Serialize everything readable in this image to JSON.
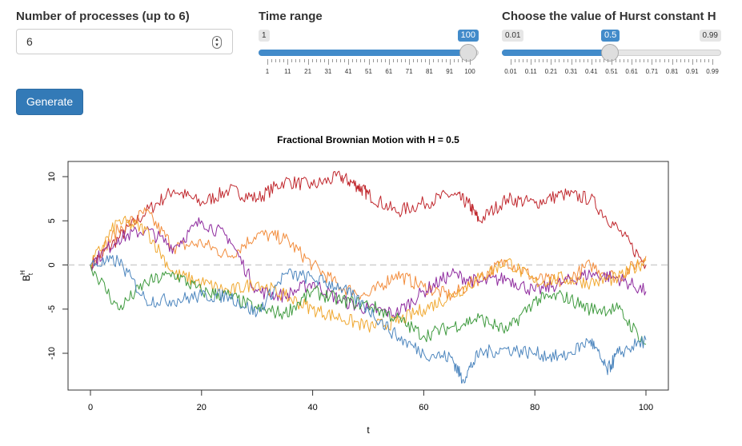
{
  "controls": {
    "processes": {
      "label": "Number of processes (up to 6)",
      "value": "6"
    },
    "time_range": {
      "label": "Time range",
      "min_label": "1",
      "value_label": "100",
      "min": 1,
      "max": 100,
      "value": 100,
      "ticks": [
        "1",
        "11",
        "21",
        "31",
        "41",
        "51",
        "61",
        "71",
        "81",
        "91",
        "100"
      ]
    },
    "hurst": {
      "label": "Choose the value of Hurst constant H",
      "min_label": "0.01",
      "value_label": "0.5",
      "max_label": "0.99",
      "min": 0.01,
      "max": 0.99,
      "value": 0.5,
      "ticks": [
        "0.01",
        "0.11",
        "0.21",
        "0.31",
        "0.41",
        "0.51",
        "0.61",
        "0.71",
        "0.81",
        "0.91",
        "0.99"
      ]
    },
    "generate_label": "Generate"
  },
  "chart_data": {
    "type": "line",
    "title": "Fractional Brownian Motion with H = 0.5",
    "xlabel": "t",
    "ylabel_main": "B",
    "ylabel_sup": "H",
    "ylabel_sub": "t",
    "xlim": [
      0,
      100
    ],
    "ylim": [
      -14,
      11
    ],
    "xticks": [
      0,
      20,
      40,
      60,
      80,
      100
    ],
    "yticks": [
      -10,
      -5,
      0,
      5,
      10
    ],
    "reference_line": 0,
    "series": [
      {
        "color": "#c0272d",
        "points": [
          [
            0,
            0
          ],
          [
            5,
            3
          ],
          [
            10,
            6
          ],
          [
            15,
            8.5
          ],
          [
            20,
            7
          ],
          [
            25,
            8.5
          ],
          [
            30,
            7.5
          ],
          [
            35,
            9.5
          ],
          [
            40,
            9
          ],
          [
            45,
            10
          ],
          [
            48,
            9
          ],
          [
            50,
            8
          ],
          [
            55,
            6
          ],
          [
            60,
            7
          ],
          [
            65,
            8
          ],
          [
            68,
            7
          ],
          [
            70,
            5
          ],
          [
            75,
            7.5
          ],
          [
            80,
            7
          ],
          [
            85,
            8
          ],
          [
            90,
            7.5
          ],
          [
            95,
            4
          ],
          [
            100,
            0
          ]
        ]
      },
      {
        "color": "#f28c3c",
        "points": [
          [
            0,
            0
          ],
          [
            5,
            4
          ],
          [
            10,
            6
          ],
          [
            15,
            2
          ],
          [
            20,
            2.5
          ],
          [
            25,
            1
          ],
          [
            30,
            3.5
          ],
          [
            35,
            3
          ],
          [
            40,
            0
          ],
          [
            45,
            -2.5
          ],
          [
            50,
            -3.5
          ],
          [
            55,
            -1
          ],
          [
            60,
            -2.5
          ],
          [
            65,
            -3.5
          ],
          [
            70,
            -1.5
          ],
          [
            75,
            0.5
          ],
          [
            80,
            -1.5
          ],
          [
            85,
            -2
          ],
          [
            90,
            0
          ],
          [
            95,
            -1.5
          ],
          [
            100,
            1
          ]
        ]
      },
      {
        "color": "#8e2a9e",
        "points": [
          [
            0,
            0
          ],
          [
            5,
            3
          ],
          [
            10,
            4
          ],
          [
            15,
            2
          ],
          [
            20,
            5
          ],
          [
            25,
            3
          ],
          [
            30,
            -3
          ],
          [
            35,
            -3.5
          ],
          [
            40,
            -2
          ],
          [
            45,
            -4
          ],
          [
            50,
            -5
          ],
          [
            55,
            -5.5
          ],
          [
            60,
            -3
          ],
          [
            65,
            -1
          ],
          [
            70,
            -2
          ],
          [
            75,
            -1.5
          ],
          [
            80,
            -3
          ],
          [
            85,
            -2
          ],
          [
            90,
            -1
          ],
          [
            95,
            -1.5
          ],
          [
            100,
            -3
          ]
        ]
      },
      {
        "color": "#f0a830",
        "points": [
          [
            0,
            0
          ],
          [
            5,
            5
          ],
          [
            10,
            4
          ],
          [
            15,
            -1
          ],
          [
            20,
            -2
          ],
          [
            25,
            -3
          ],
          [
            30,
            -2
          ],
          [
            35,
            -3.5
          ],
          [
            40,
            -5
          ],
          [
            45,
            -6
          ],
          [
            50,
            -7
          ],
          [
            55,
            -6.5
          ],
          [
            60,
            -5
          ],
          [
            65,
            -3.5
          ],
          [
            70,
            -1.5
          ],
          [
            75,
            0.5
          ],
          [
            80,
            -2
          ],
          [
            85,
            -1.5
          ],
          [
            90,
            -2
          ],
          [
            95,
            -1.5
          ],
          [
            100,
            0.5
          ]
        ]
      },
      {
        "color": "#3e9a3e",
        "points": [
          [
            0,
            0
          ],
          [
            5,
            -5
          ],
          [
            10,
            -2
          ],
          [
            15,
            -1
          ],
          [
            20,
            -3
          ],
          [
            25,
            -3.5
          ],
          [
            30,
            -5
          ],
          [
            35,
            -5.5
          ],
          [
            40,
            -3
          ],
          [
            45,
            -4
          ],
          [
            50,
            -4.5
          ],
          [
            55,
            -6
          ],
          [
            60,
            -8
          ],
          [
            65,
            -7
          ],
          [
            70,
            -6
          ],
          [
            75,
            -7.5
          ],
          [
            80,
            -4
          ],
          [
            85,
            -3.5
          ],
          [
            90,
            -5
          ],
          [
            95,
            -5
          ],
          [
            100,
            -9
          ]
        ]
      },
      {
        "color": "#4d86be",
        "points": [
          [
            0,
            0
          ],
          [
            5,
            0.5
          ],
          [
            10,
            -4
          ],
          [
            15,
            -4
          ],
          [
            20,
            -3.5
          ],
          [
            25,
            -3.5
          ],
          [
            30,
            -5.5
          ],
          [
            35,
            -1
          ],
          [
            40,
            -1.5
          ],
          [
            45,
            -2.5
          ],
          [
            50,
            -5
          ],
          [
            55,
            -8
          ],
          [
            60,
            -10
          ],
          [
            65,
            -10.5
          ],
          [
            67,
            -13
          ],
          [
            70,
            -10
          ],
          [
            75,
            -9.5
          ],
          [
            80,
            -10
          ],
          [
            85,
            -10.5
          ],
          [
            90,
            -8.5
          ],
          [
            93,
            -12
          ],
          [
            95,
            -10
          ],
          [
            100,
            -8.5
          ]
        ]
      }
    ]
  }
}
